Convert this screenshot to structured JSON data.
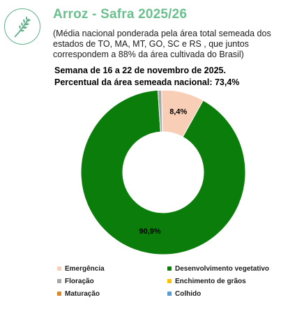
{
  "header": {
    "title": "Arroz - Safra 2025/26",
    "subtitle": "(Média nacional ponderada pela área total semeada dos estados de TO, MA, MT, GO, SC e RS , que juntos correspondem a 88% da área cultivada do Brasil)",
    "week": "Semana de 16 a 22 de novembro de 2025.",
    "percent_sown": "Percentual da área semeada nacional: 73,4%"
  },
  "logo": {
    "icon": "rice-plant-icon",
    "color": "#5fb08a"
  },
  "chart_data": {
    "type": "pie",
    "title": "",
    "donut": true,
    "series": [
      {
        "name": "Emergência",
        "value": 8.4,
        "label": "8,4%",
        "color": "#f8cfb6"
      },
      {
        "name": "Desenvolvimento vegetativo",
        "value": 90.9,
        "label": "90,9%",
        "color": "#0a7d0a"
      },
      {
        "name": "Floração",
        "value": 0.7,
        "label": "",
        "color": "#a6a6a6"
      },
      {
        "name": "Enchimento de grãos",
        "value": 0,
        "label": "",
        "color": "#ffc000"
      },
      {
        "name": "Maturação",
        "value": 0,
        "label": "",
        "color": "#d9882a"
      },
      {
        "name": "Colhido",
        "value": 0,
        "label": "",
        "color": "#5b9bd5"
      }
    ],
    "legend_position": "bottom"
  }
}
